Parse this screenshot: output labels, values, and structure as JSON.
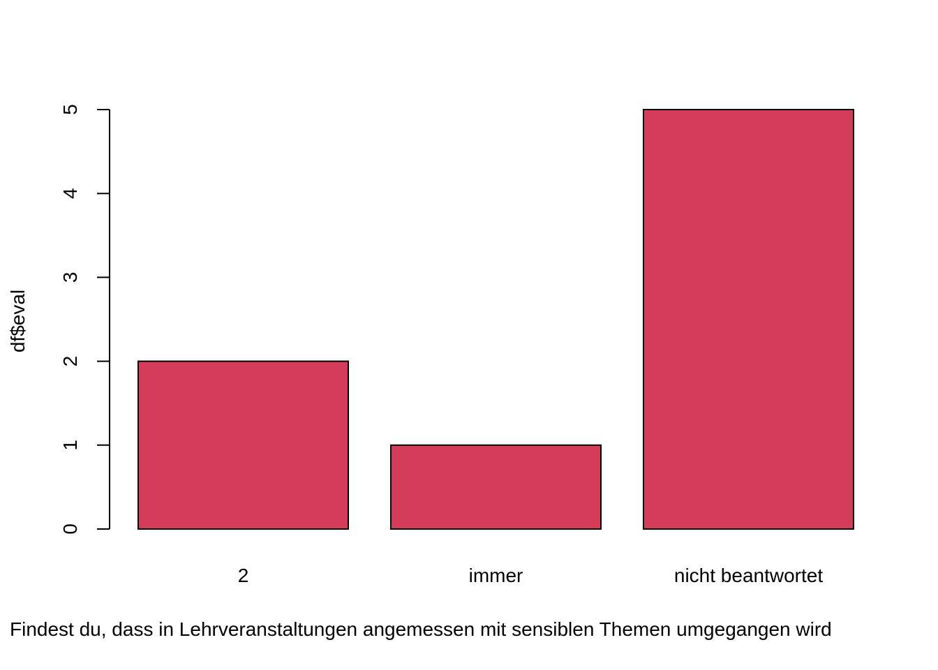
{
  "chart_data": {
    "type": "bar",
    "categories": [
      "2",
      "immer",
      "nicht beantwortet"
    ],
    "values": [
      2,
      1,
      5
    ],
    "title": "",
    "xlabel": "Findest du, dass in Lehrveranstaltungen angemessen mit sensiblen Themen umgegangen wird",
    "ylabel": "df$eval",
    "ylim": [
      0,
      5
    ],
    "yticks": [
      "0",
      "1",
      "2",
      "3",
      "4",
      "5"
    ],
    "grid": false,
    "legend": "none",
    "colors": {
      "bar_fill": "#d53c5a",
      "bar_stroke": "#000000",
      "axis": "#000000",
      "background": "#ffffff"
    }
  }
}
